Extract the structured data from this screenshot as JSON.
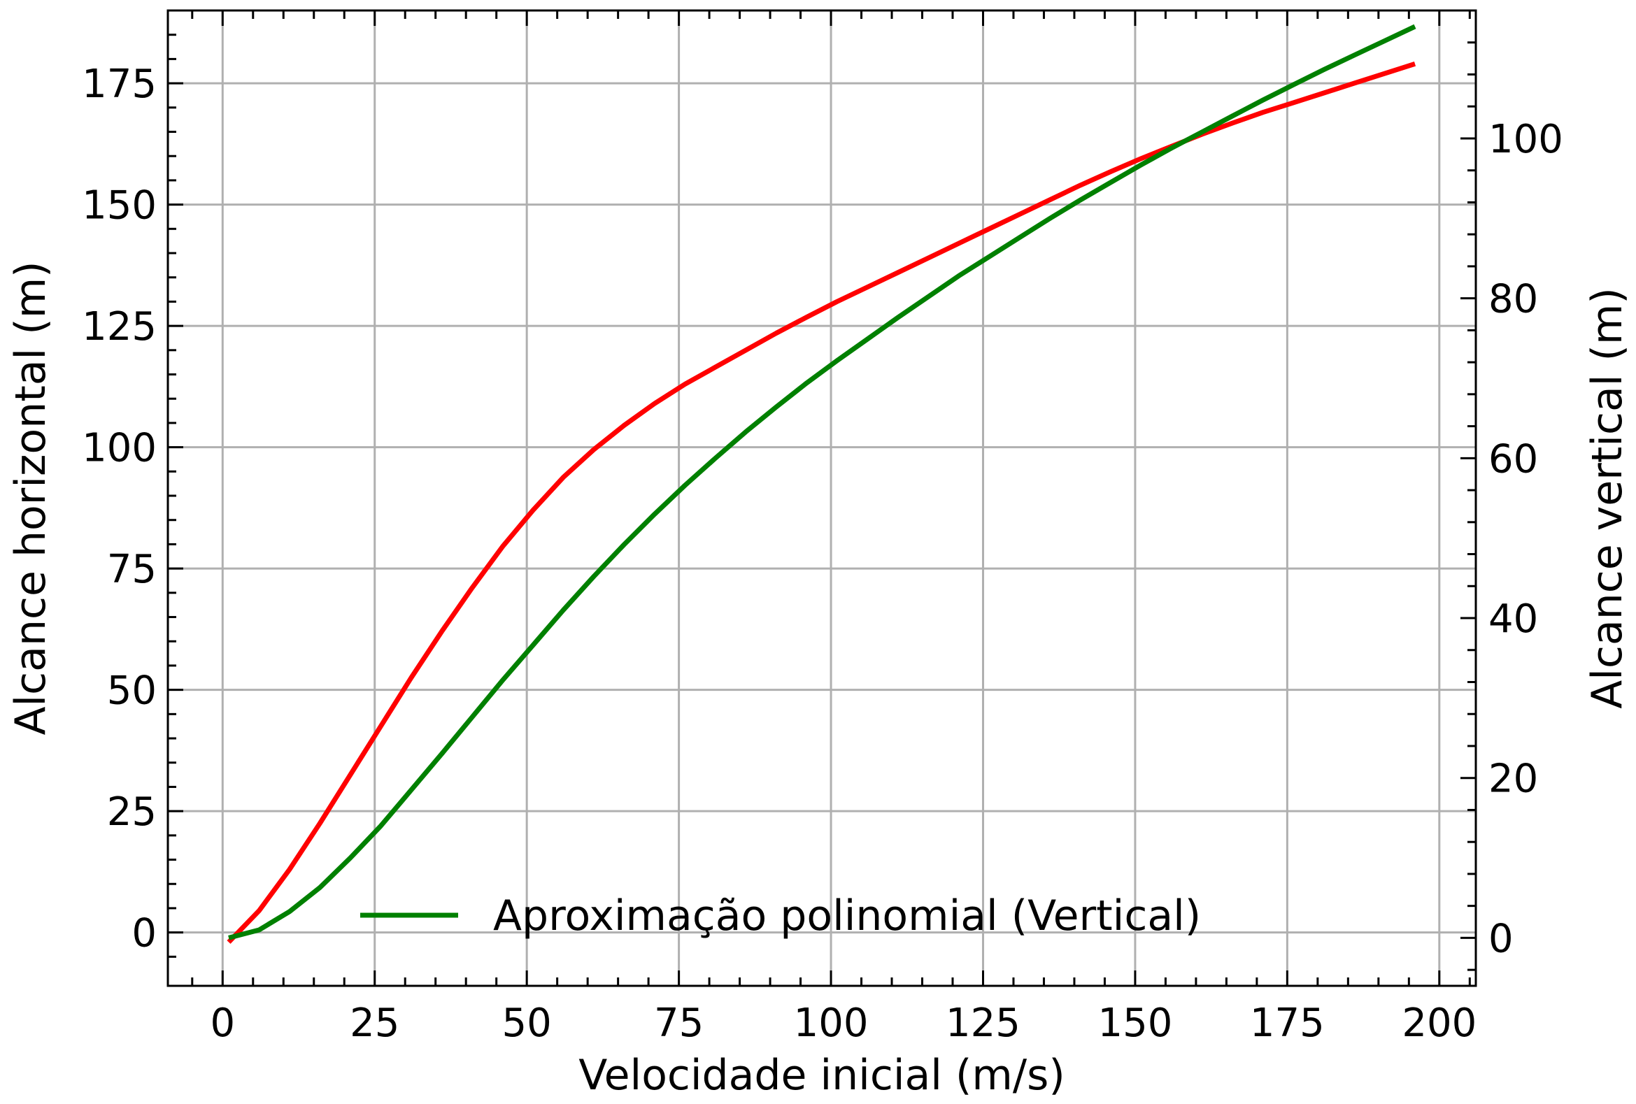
{
  "chart_data": {
    "type": "line",
    "xlabel": "Velocidade inicial (m/s)",
    "ylabel": "Alcance horizontal (m)",
    "y2label": "Alcance vertical (m)",
    "xlim": [
      -9,
      206
    ],
    "ylim": [
      -11,
      190
    ],
    "y2lim": [
      -6,
      116
    ],
    "x_ticks": [
      0,
      25,
      50,
      75,
      100,
      125,
      150,
      175,
      200
    ],
    "y_ticks": [
      0,
      25,
      50,
      75,
      100,
      125,
      150,
      175
    ],
    "y2_ticks": [
      0,
      20,
      40,
      60,
      80,
      100
    ],
    "grid": true,
    "legend": {
      "position": "bottom-center",
      "entries": [
        "Aproximação polinomial (Vertical)"
      ]
    },
    "series": [
      {
        "axis": "left",
        "color": "#ff0000",
        "x": [
          1,
          6,
          11,
          16,
          21,
          26,
          31,
          36,
          41,
          46,
          51,
          56,
          61,
          66,
          71,
          76,
          81,
          86,
          91,
          96,
          101,
          106,
          111,
          116,
          121,
          126,
          131,
          136,
          141,
          146,
          151,
          156,
          161,
          166,
          171,
          176,
          181,
          186,
          191,
          196
        ],
        "y": [
          -2,
          4.5,
          13,
          22.5,
          32.5,
          42.5,
          52.5,
          62,
          71,
          79.5,
          87,
          93.8,
          99.5,
          104.5,
          109,
          113,
          116.5,
          120,
          123.5,
          126.8,
          130,
          133,
          136,
          139,
          142,
          145,
          148,
          151,
          154,
          156.8,
          159.5,
          162,
          164.5,
          166.8,
          169,
          171,
          173,
          175,
          177,
          179
        ]
      },
      {
        "axis": "right",
        "name": "Aproximação polinomial (Vertical)",
        "color": "#008000",
        "x": [
          1,
          6,
          11,
          16,
          21,
          26,
          31,
          36,
          41,
          46,
          51,
          56,
          61,
          66,
          71,
          76,
          81,
          86,
          91,
          96,
          101,
          106,
          111,
          116,
          121,
          126,
          131,
          136,
          141,
          146,
          151,
          156,
          161,
          166,
          171,
          176,
          181,
          186,
          191,
          196
        ],
        "y": [
          0,
          1,
          3.3,
          6.3,
          10,
          14,
          18.5,
          23,
          27.6,
          32.2,
          36.6,
          41,
          45.2,
          49.2,
          53,
          56.6,
          60,
          63.3,
          66.4,
          69.4,
          72.2,
          74.9,
          77.6,
          80.2,
          82.8,
          85.2,
          87.6,
          90,
          92.3,
          94.5,
          96.7,
          98.8,
          100.8,
          102.8,
          104.8,
          106.7,
          108.6,
          110.4,
          112.2,
          114
        ]
      }
    ]
  }
}
